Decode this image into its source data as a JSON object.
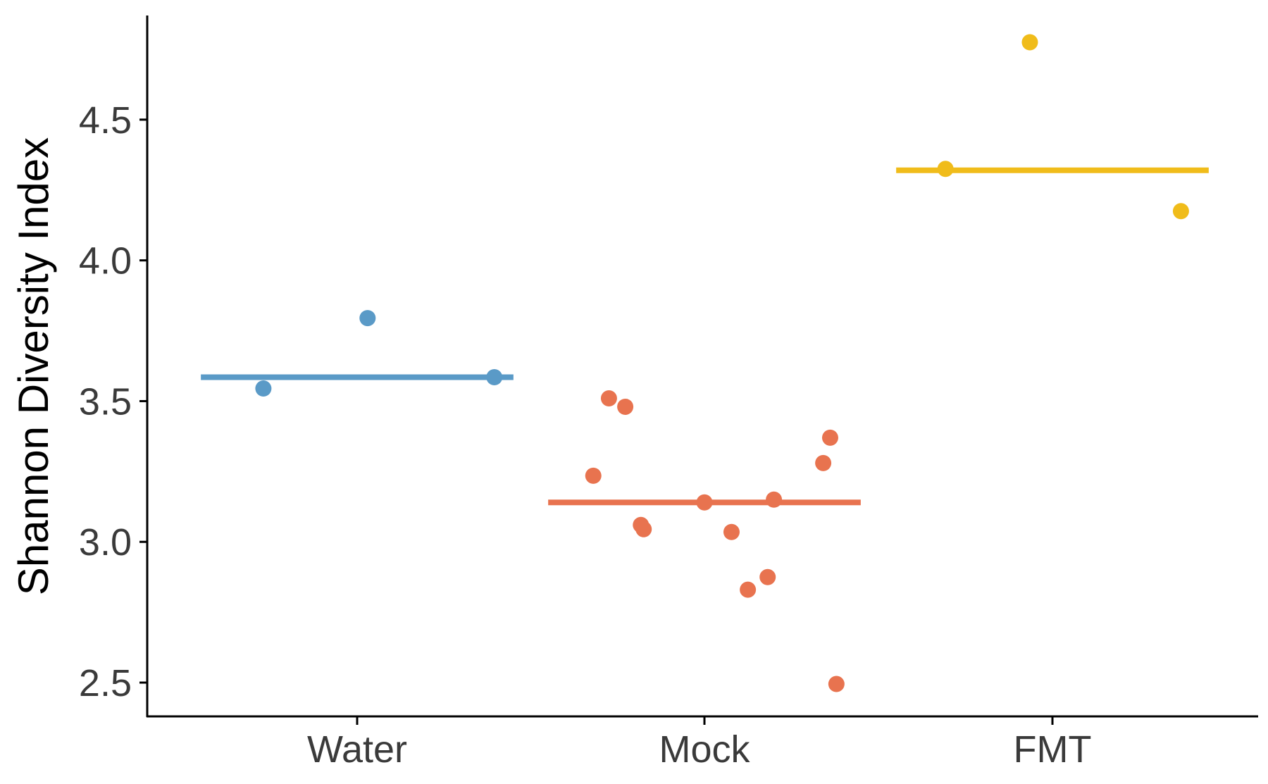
{
  "chart_data": {
    "type": "scatter",
    "title": "",
    "xlabel": "",
    "ylabel": "Shannon Diversity Index",
    "ylim": [
      2.38,
      4.87
    ],
    "y_ticks": [
      2.5,
      3.0,
      3.5,
      4.0,
      4.5
    ],
    "y_tick_labels": [
      "2.5",
      "3.0",
      "3.5",
      "4.0",
      "4.5"
    ],
    "categories": [
      "Water",
      "Mock",
      "FMT"
    ],
    "grid": false,
    "legend": "none",
    "series": [
      {
        "category": "Water",
        "color": "#5a9ac7",
        "mean": 3.585,
        "points": [
          {
            "x_offset": -0.27,
            "y": 3.545
          },
          {
            "x_offset": 0.03,
            "y": 3.795
          },
          {
            "x_offset": 0.395,
            "y": 3.585
          }
        ]
      },
      {
        "category": "Mock",
        "color": "#e8734f",
        "mean": 3.14,
        "points": [
          {
            "x_offset": -0.32,
            "y": 3.235
          },
          {
            "x_offset": -0.275,
            "y": 3.51
          },
          {
            "x_offset": -0.228,
            "y": 3.48
          },
          {
            "x_offset": -0.183,
            "y": 3.06
          },
          {
            "x_offset": -0.175,
            "y": 3.045
          },
          {
            "x_offset": 0.0,
            "y": 3.14
          },
          {
            "x_offset": 0.078,
            "y": 3.035
          },
          {
            "x_offset": 0.125,
            "y": 2.83
          },
          {
            "x_offset": 0.182,
            "y": 2.875
          },
          {
            "x_offset": 0.2,
            "y": 3.15
          },
          {
            "x_offset": 0.342,
            "y": 3.28
          },
          {
            "x_offset": 0.362,
            "y": 3.37
          },
          {
            "x_offset": 0.38,
            "y": 2.495
          }
        ]
      },
      {
        "category": "FMT",
        "color": "#f0bc1a",
        "mean": 4.32,
        "points": [
          {
            "x_offset": -0.308,
            "y": 4.325
          },
          {
            "x_offset": -0.065,
            "y": 4.775
          },
          {
            "x_offset": 0.37,
            "y": 4.175
          }
        ]
      }
    ]
  }
}
